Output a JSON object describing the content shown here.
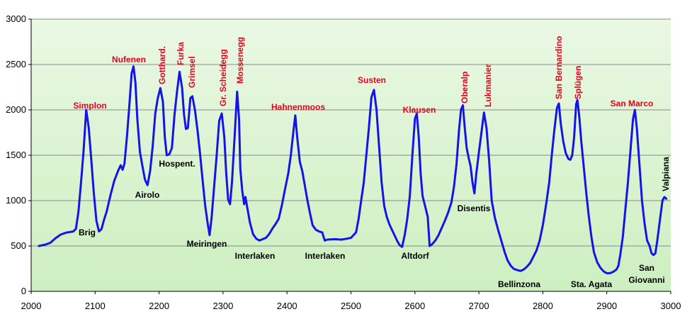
{
  "chart_data": {
    "type": "line",
    "title": "",
    "xlabel": "",
    "ylabel": "",
    "xlim": [
      2000,
      3000
    ],
    "ylim": [
      0,
      3000
    ],
    "grid": true,
    "x_ticks": [
      "2000",
      "2100",
      "2200",
      "2300",
      "2400",
      "2500",
      "2600",
      "2700",
      "2800",
      "2900",
      "3000"
    ],
    "y_ticks": [
      "0",
      "500",
      "1000",
      "1500",
      "2000",
      "2500",
      "3000"
    ],
    "background_gradient": [
      "#eaf8e4",
      "#cdefc0"
    ],
    "line_color": "#1414e6",
    "series": [
      {
        "points": [
          [
            2012,
            500
          ],
          [
            2022,
            515
          ],
          [
            2030,
            535
          ],
          [
            2038,
            585
          ],
          [
            2046,
            625
          ],
          [
            2055,
            648
          ],
          [
            2066,
            660
          ],
          [
            2070,
            690
          ],
          [
            2074,
            880
          ],
          [
            2078,
            1200
          ],
          [
            2082,
            1550
          ],
          [
            2086,
            2000
          ],
          [
            2090,
            1800
          ],
          [
            2094,
            1450
          ],
          [
            2098,
            1080
          ],
          [
            2102,
            780
          ],
          [
            2106,
            660
          ],
          [
            2110,
            685
          ],
          [
            2114,
            790
          ],
          [
            2118,
            880
          ],
          [
            2124,
            1060
          ],
          [
            2130,
            1220
          ],
          [
            2136,
            1330
          ],
          [
            2140,
            1390
          ],
          [
            2143,
            1340
          ],
          [
            2146,
            1410
          ],
          [
            2150,
            1720
          ],
          [
            2154,
            2100
          ],
          [
            2157,
            2400
          ],
          [
            2160,
            2480
          ],
          [
            2163,
            2300
          ],
          [
            2166,
            1900
          ],
          [
            2170,
            1540
          ],
          [
            2174,
            1380
          ],
          [
            2178,
            1230
          ],
          [
            2182,
            1170
          ],
          [
            2186,
            1330
          ],
          [
            2190,
            1600
          ],
          [
            2194,
            1960
          ],
          [
            2198,
            2130
          ],
          [
            2202,
            2240
          ],
          [
            2206,
            2090
          ],
          [
            2209,
            1700
          ],
          [
            2212,
            1500
          ],
          [
            2216,
            1510
          ],
          [
            2220,
            1580
          ],
          [
            2224,
            1940
          ],
          [
            2228,
            2200
          ],
          [
            2232,
            2420
          ],
          [
            2236,
            2240
          ],
          [
            2239,
            1950
          ],
          [
            2242,
            1790
          ],
          [
            2245,
            1800
          ],
          [
            2249,
            2130
          ],
          [
            2252,
            2150
          ],
          [
            2256,
            2000
          ],
          [
            2260,
            1780
          ],
          [
            2264,
            1520
          ],
          [
            2268,
            1230
          ],
          [
            2272,
            950
          ],
          [
            2276,
            750
          ],
          [
            2279,
            620
          ],
          [
            2282,
            800
          ],
          [
            2286,
            1150
          ],
          [
            2290,
            1500
          ],
          [
            2294,
            1880
          ],
          [
            2298,
            1960
          ],
          [
            2302,
            1700
          ],
          [
            2305,
            1300
          ],
          [
            2308,
            1010
          ],
          [
            2311,
            960
          ],
          [
            2314,
            1200
          ],
          [
            2318,
            1700
          ],
          [
            2322,
            2200
          ],
          [
            2325,
            1900
          ],
          [
            2327,
            1350
          ],
          [
            2330,
            1110
          ],
          [
            2333,
            960
          ],
          [
            2335,
            1040
          ],
          [
            2338,
            920
          ],
          [
            2342,
            760
          ],
          [
            2347,
            630
          ],
          [
            2352,
            580
          ],
          [
            2357,
            560
          ],
          [
            2362,
            575
          ],
          [
            2367,
            590
          ],
          [
            2372,
            630
          ],
          [
            2377,
            690
          ],
          [
            2382,
            740
          ],
          [
            2387,
            800
          ],
          [
            2392,
            950
          ],
          [
            2397,
            1130
          ],
          [
            2402,
            1300
          ],
          [
            2406,
            1500
          ],
          [
            2410,
            1760
          ],
          [
            2413,
            1940
          ],
          [
            2416,
            1700
          ],
          [
            2420,
            1430
          ],
          [
            2424,
            1320
          ],
          [
            2428,
            1160
          ],
          [
            2432,
            1000
          ],
          [
            2436,
            860
          ],
          [
            2440,
            730
          ],
          [
            2445,
            680
          ],
          [
            2450,
            660
          ],
          [
            2455,
            650
          ],
          [
            2459,
            560
          ],
          [
            2463,
            570
          ],
          [
            2475,
            575
          ],
          [
            2485,
            570
          ],
          [
            2493,
            580
          ],
          [
            2500,
            590
          ],
          [
            2508,
            650
          ],
          [
            2512,
            800
          ],
          [
            2516,
            1000
          ],
          [
            2520,
            1200
          ],
          [
            2524,
            1500
          ],
          [
            2528,
            1800
          ],
          [
            2532,
            2140
          ],
          [
            2536,
            2220
          ],
          [
            2540,
            2000
          ],
          [
            2544,
            1600
          ],
          [
            2548,
            1200
          ],
          [
            2552,
            940
          ],
          [
            2556,
            820
          ],
          [
            2560,
            740
          ],
          [
            2564,
            680
          ],
          [
            2568,
            620
          ],
          [
            2572,
            560
          ],
          [
            2576,
            510
          ],
          [
            2580,
            490
          ],
          [
            2584,
            620
          ],
          [
            2588,
            800
          ],
          [
            2592,
            1050
          ],
          [
            2596,
            1500
          ],
          [
            2600,
            1900
          ],
          [
            2603,
            1960
          ],
          [
            2606,
            1700
          ],
          [
            2609,
            1300
          ],
          [
            2612,
            1050
          ],
          [
            2616,
            940
          ],
          [
            2620,
            820
          ],
          [
            2623,
            500
          ],
          [
            2627,
            520
          ],
          [
            2632,
            560
          ],
          [
            2637,
            620
          ],
          [
            2642,
            700
          ],
          [
            2647,
            780
          ],
          [
            2652,
            870
          ],
          [
            2657,
            980
          ],
          [
            2661,
            1150
          ],
          [
            2665,
            1400
          ],
          [
            2669,
            1780
          ],
          [
            2672,
            2000
          ],
          [
            2675,
            2050
          ],
          [
            2678,
            1800
          ],
          [
            2681,
            1580
          ],
          [
            2684,
            1470
          ],
          [
            2687,
            1380
          ],
          [
            2690,
            1200
          ],
          [
            2693,
            1080
          ],
          [
            2696,
            1300
          ],
          [
            2700,
            1530
          ],
          [
            2704,
            1750
          ],
          [
            2708,
            1970
          ],
          [
            2712,
            1800
          ],
          [
            2716,
            1450
          ],
          [
            2720,
            1000
          ],
          [
            2725,
            810
          ],
          [
            2730,
            680
          ],
          [
            2735,
            560
          ],
          [
            2740,
            440
          ],
          [
            2745,
            340
          ],
          [
            2750,
            280
          ],
          [
            2755,
            245
          ],
          [
            2760,
            235
          ],
          [
            2765,
            225
          ],
          [
            2770,
            240
          ],
          [
            2775,
            270
          ],
          [
            2780,
            310
          ],
          [
            2785,
            380
          ],
          [
            2790,
            450
          ],
          [
            2795,
            560
          ],
          [
            2800,
            730
          ],
          [
            2805,
            950
          ],
          [
            2810,
            1200
          ],
          [
            2814,
            1500
          ],
          [
            2818,
            1780
          ],
          [
            2822,
            2020
          ],
          [
            2825,
            2070
          ],
          [
            2828,
            1850
          ],
          [
            2832,
            1650
          ],
          [
            2836,
            1520
          ],
          [
            2840,
            1460
          ],
          [
            2843,
            1450
          ],
          [
            2846,
            1500
          ],
          [
            2849,
            1700
          ],
          [
            2852,
            2060
          ],
          [
            2854,
            2110
          ],
          [
            2857,
            1920
          ],
          [
            2860,
            1660
          ],
          [
            2864,
            1370
          ],
          [
            2868,
            1080
          ],
          [
            2872,
            820
          ],
          [
            2876,
            600
          ],
          [
            2880,
            430
          ],
          [
            2885,
            320
          ],
          [
            2890,
            260
          ],
          [
            2895,
            220
          ],
          [
            2900,
            200
          ],
          [
            2905,
            200
          ],
          [
            2910,
            215
          ],
          [
            2915,
            240
          ],
          [
            2918,
            280
          ],
          [
            2921,
            400
          ],
          [
            2925,
            600
          ],
          [
            2929,
            900
          ],
          [
            2933,
            1200
          ],
          [
            2937,
            1550
          ],
          [
            2941,
            1900
          ],
          [
            2944,
            2000
          ],
          [
            2947,
            1800
          ],
          [
            2951,
            1400
          ],
          [
            2955,
            1000
          ],
          [
            2959,
            750
          ],
          [
            2963,
            560
          ],
          [
            2967,
            500
          ],
          [
            2970,
            420
          ],
          [
            2973,
            400
          ],
          [
            2976,
            420
          ],
          [
            2979,
            560
          ],
          [
            2983,
            780
          ],
          [
            2987,
            1000
          ],
          [
            2990,
            1040
          ],
          [
            2993,
            1020
          ]
        ]
      }
    ],
    "pass_labels": [
      {
        "text": "Simplon",
        "x": 2086,
        "y": 2000
      },
      {
        "text": "Nufenen",
        "x": 2160,
        "y": 2480
      },
      {
        "text": "Gotthard.",
        "x": 2202,
        "y": 2240,
        "rotated": true
      },
      {
        "text": "Furka",
        "x": 2232,
        "y": 2420,
        "rotated": true
      },
      {
        "text": "Grimsel",
        "x": 2252,
        "y": 2150,
        "rotated": true
      },
      {
        "text": "Gr. Scheidegg",
        "x": 2298,
        "y": 1960,
        "rotated": true
      },
      {
        "text": "Mossenegg",
        "x": 2324,
        "y": 2200,
        "rotated": true
      },
      {
        "text": "Hahnenmoos",
        "x": 2415,
        "y": 1940
      },
      {
        "text": "Susten",
        "x": 2535,
        "y": 2220
      },
      {
        "text": "Klausen",
        "x": 2604,
        "y": 1960
      },
      {
        "text": "Oberalp",
        "x": 2675,
        "y": 2050,
        "rotated": true
      },
      {
        "text": "Lukmanier",
        "x": 2708,
        "y": 1970,
        "rotated": true
      },
      {
        "text": "San Bernardino",
        "x": 2825,
        "y": 2070,
        "rotated": true
      },
      {
        "text": "Splügen",
        "x": 2854,
        "y": 2110,
        "rotated": true
      },
      {
        "text": "San Marco",
        "x": 2944,
        "y": 2000
      }
    ],
    "town_labels": [
      {
        "text": "Brig"
      },
      {
        "text": "Airolo"
      },
      {
        "text": "Hospent."
      },
      {
        "text": "Meiringen"
      },
      {
        "text": "Interlaken"
      },
      {
        "text": "Interlaken"
      },
      {
        "text": "Altdorf"
      },
      {
        "text": "Disentis"
      },
      {
        "text": "Bellinzona"
      },
      {
        "text": "Sta. Agata"
      },
      {
        "text": "San"
      },
      {
        "text": "Giovanni"
      },
      {
        "text": "Valpiana"
      }
    ]
  }
}
